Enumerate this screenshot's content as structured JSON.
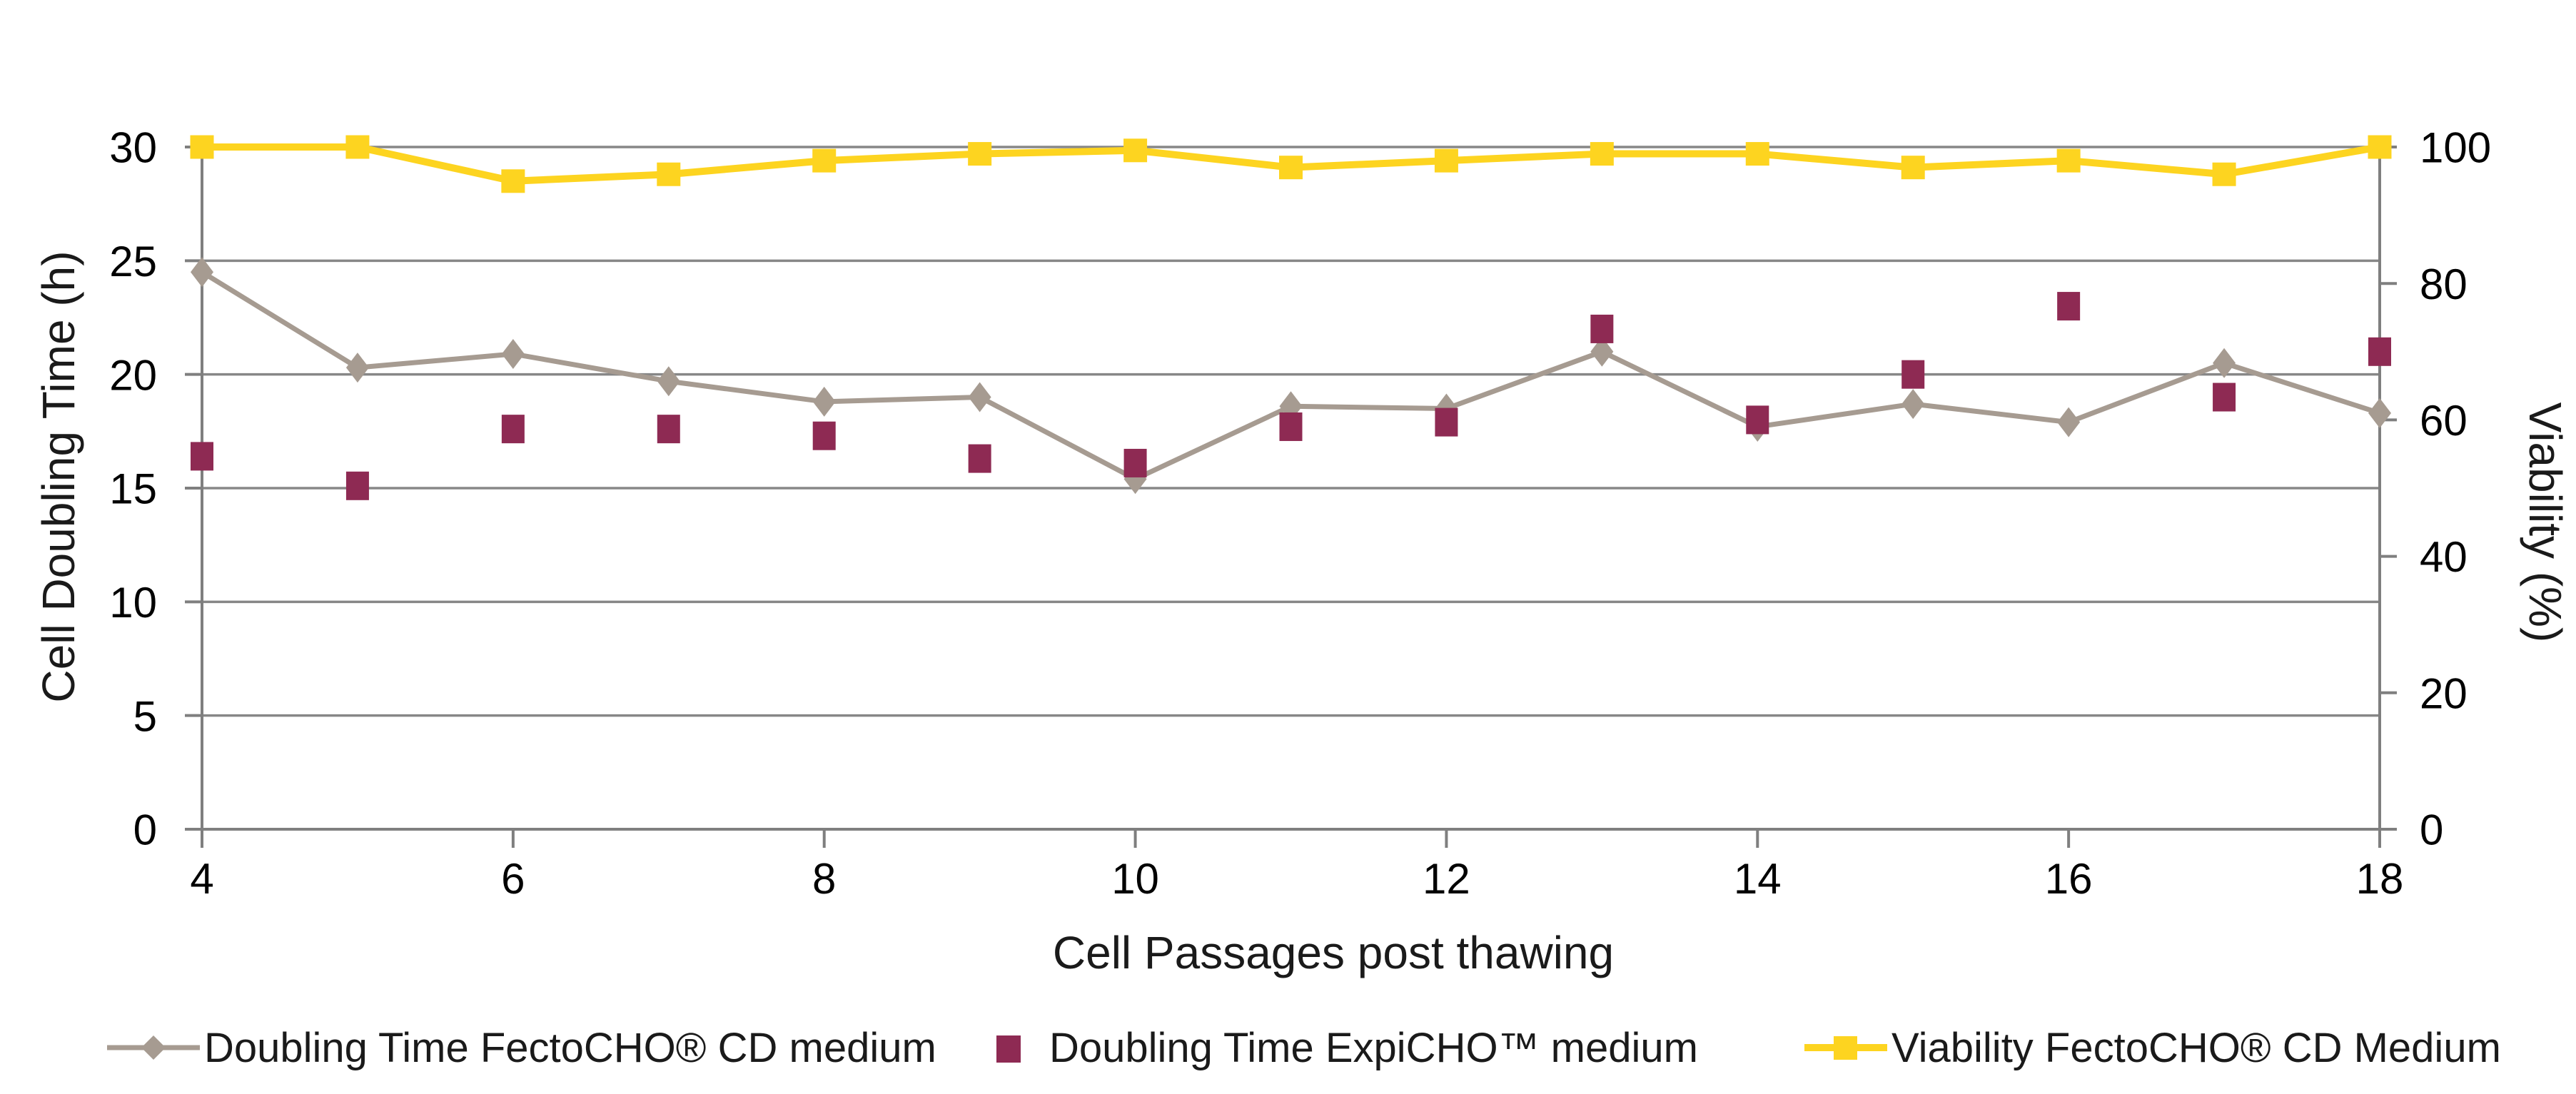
{
  "chart_data": {
    "type": "line",
    "x": [
      4,
      5,
      6,
      7,
      8,
      9,
      10,
      11,
      12,
      13,
      14,
      15,
      16,
      17,
      18
    ],
    "xticks": [
      4,
      6,
      8,
      10,
      12,
      14,
      16,
      18
    ],
    "yticks_left": [
      0,
      5,
      10,
      15,
      20,
      25,
      30
    ],
    "yticks_right": [
      0,
      20,
      40,
      60,
      80,
      100
    ],
    "ylim_left": [
      0,
      30
    ],
    "ylim_right": [
      0,
      100
    ],
    "xlabel": "Cell Passages post thawing",
    "ylabel_left": "Cell Doubling Time (h)",
    "ylabel_right": "Viability (%)",
    "grid": "horizontal-major",
    "legend_position": "bottom",
    "series": [
      {
        "name": "Doubling Time FectoCHO® CD medium",
        "axis": "left",
        "color": "#A69B91",
        "marker": "diamond",
        "line": true,
        "line_width": 7,
        "values": [
          24.5,
          20.3,
          20.9,
          19.7,
          18.8,
          19.0,
          15.4,
          18.6,
          18.5,
          21.0,
          17.7,
          18.7,
          17.9,
          20.5,
          18.3
        ]
      },
      {
        "name": "Doubling Time ExpiCHO™ medium",
        "axis": "left",
        "color": "#8E2A53",
        "marker": "square",
        "line": false,
        "line_width": 0,
        "values": [
          16.4,
          15.1,
          17.6,
          17.6,
          17.3,
          16.3,
          16.1,
          17.7,
          17.9,
          22.0,
          18.0,
          20.0,
          23.0,
          19.0,
          21.0
        ]
      },
      {
        "name": "Viability FectoCHO® CD Medium",
        "axis": "right",
        "color": "#FDD420",
        "marker": "square",
        "line": true,
        "line_width": 10,
        "values": [
          100,
          100,
          95,
          96,
          98,
          99,
          99.5,
          97,
          98,
          99,
          99,
          97,
          98,
          96,
          100
        ]
      }
    ]
  },
  "legend": {
    "items": [
      {
        "label": "Doubling Time FectoCHO® CD medium"
      },
      {
        "label": "Doubling Time ExpiCHO™ medium"
      },
      {
        "label": "Viability FectoCHO® CD Medium"
      }
    ]
  },
  "colors": {
    "gridline": "#878787",
    "axis_line": "#7F7F7F",
    "tick_label": "#000000"
  }
}
